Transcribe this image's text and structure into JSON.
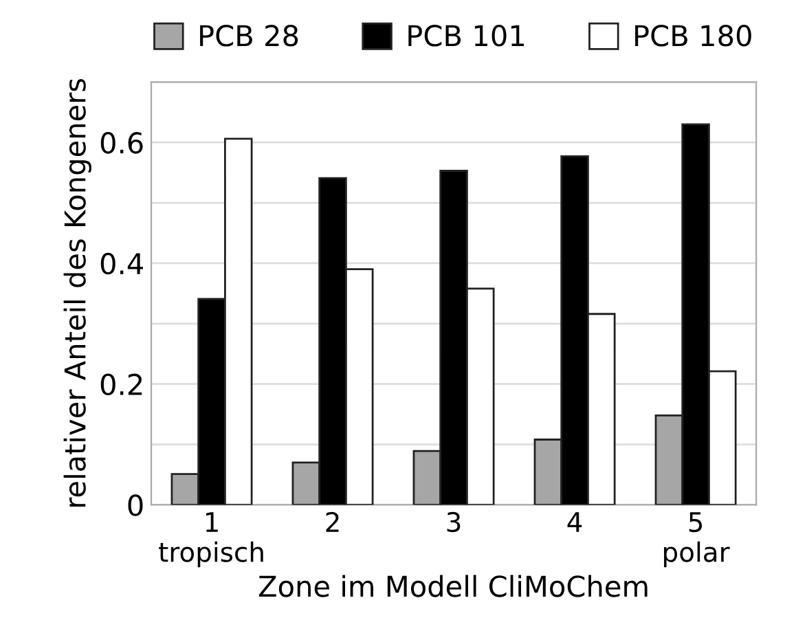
{
  "chart_data": {
    "type": "bar",
    "xlabel": "Zone im Modell CliMoChem",
    "ylabel": "relativer Anteil des Kongeners",
    "categories": [
      "1\ntropisch",
      "2",
      "3",
      "4",
      "5\npolar"
    ],
    "series": [
      {
        "name": "PCB 28",
        "color": "#a6a6a6",
        "values": [
          0.051,
          0.07,
          0.089,
          0.108,
          0.148
        ]
      },
      {
        "name": "PCB 101",
        "color": "#000000",
        "values": [
          0.341,
          0.541,
          0.553,
          0.577,
          0.63
        ]
      },
      {
        "name": "PCB 180",
        "color": "#ffffff",
        "values": [
          0.606,
          0.39,
          0.358,
          0.316,
          0.221
        ]
      }
    ],
    "ylim": [
      0,
      0.7
    ],
    "yticks": [
      0,
      {
        "value": 0.1,
        "label": null
      },
      0.2,
      {
        "value": 0.3,
        "label": null
      },
      0.4,
      {
        "value": 0.5,
        "label": null
      },
      0.6,
      {
        "value": 0.7,
        "label": null
      }
    ],
    "grid": "y",
    "legend": "top"
  }
}
